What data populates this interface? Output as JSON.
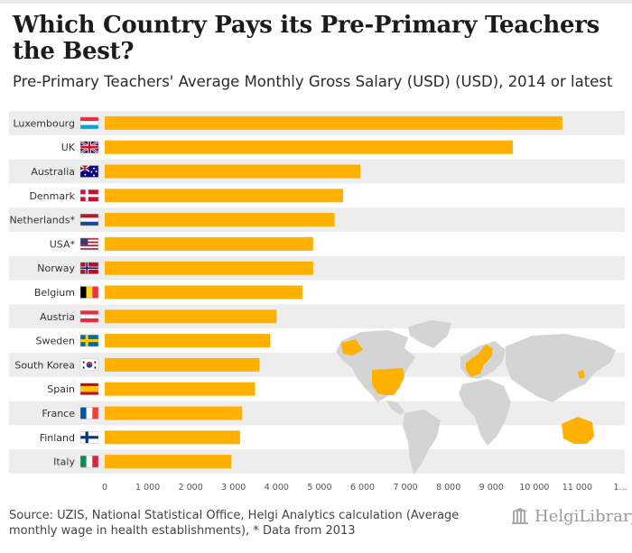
{
  "header": {
    "title": "Which Country Pays its Pre-Primary Teachers the Best?",
    "subtitle": "Pre-Primary Teachers' Average Monthly Gross Salary (USD) (USD), 2014 or latest"
  },
  "footer": {
    "source": "Source: UZIS, National Statistical Office, Helgi Analytics calculation (Average monthly wage in health establishments), * Data from 2013",
    "brand": "HelgiLibrary"
  },
  "colors": {
    "bar": "#ffb000",
    "band": "#ededed",
    "map_land": "#d4d4d4",
    "map_highlight": "#ffb000"
  },
  "chart_data": {
    "type": "bar",
    "orientation": "horizontal",
    "title": "Which Country Pays its Pre-Primary Teachers the Best?",
    "subtitle": "Pre-Primary Teachers' Average Monthly Gross Salary (USD) (USD), 2014 or latest",
    "categories": [
      "Luxembourg",
      "UK",
      "Australia",
      "Denmark",
      "Netherlands*",
      "USA*",
      "Norway",
      "Belgium",
      "Austria",
      "Sweden",
      "South Korea",
      "Spain",
      "France",
      "Finland",
      "Italy"
    ],
    "flags": [
      "luxembourg-flag",
      "uk-flag",
      "australia-flag",
      "denmark-flag",
      "netherlands-flag",
      "usa-flag",
      "norway-flag",
      "belgium-flag",
      "austria-flag",
      "sweden-flag",
      "south-korea-flag",
      "spain-flag",
      "france-flag",
      "finland-flag",
      "italy-flag"
    ],
    "values": [
      10650,
      9500,
      5950,
      5550,
      5350,
      4850,
      4850,
      4600,
      4000,
      3850,
      3600,
      3500,
      3200,
      3150,
      2950
    ],
    "xlim": [
      0,
      12000
    ],
    "x_ticks": [
      "0",
      "1 000",
      "2 000",
      "3 000",
      "4 000",
      "5 000",
      "6 000",
      "7 000",
      "8 000",
      "9 000",
      "10 000",
      "11 000",
      "1..."
    ],
    "xlabel": "",
    "ylabel": "",
    "grid": false,
    "legend": "none"
  }
}
